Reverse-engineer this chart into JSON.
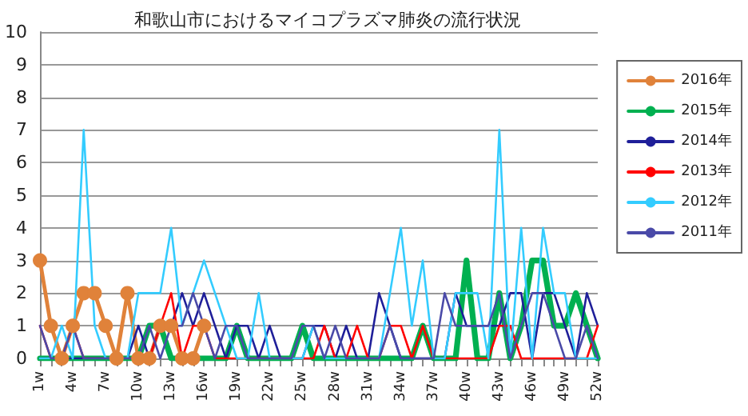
{
  "chart_data": {
    "type": "line",
    "title": "和歌山市におけるマイコプラズマ肺炎の流行状況",
    "categories": [
      "1w",
      null,
      null,
      "4w",
      null,
      null,
      "7w",
      null,
      null,
      "10w",
      null,
      null,
      "13w",
      null,
      null,
      "16w",
      null,
      null,
      "19w",
      null,
      null,
      "22w",
      null,
      null,
      "25w",
      null,
      null,
      "28w",
      null,
      null,
      "31w",
      null,
      null,
      "34w",
      null,
      null,
      "37w",
      null,
      null,
      "40w",
      null,
      null,
      "43w",
      null,
      null,
      "46w",
      null,
      null,
      "49w",
      null,
      null,
      "52w"
    ],
    "series": [
      {
        "name": "2016年",
        "color": "#e0823a",
        "marker": "circle",
        "values": [
          3,
          1,
          0,
          1,
          2,
          2,
          1,
          0,
          2,
          0,
          0,
          1,
          1,
          0,
          0,
          1,
          null,
          null,
          null,
          null,
          null,
          null,
          null,
          null,
          null,
          null,
          null,
          null,
          null,
          null,
          null,
          null,
          null,
          null,
          null,
          null,
          null,
          null,
          null,
          null,
          null,
          null,
          null,
          null,
          null,
          null,
          null,
          null,
          null,
          null,
          null,
          null
        ]
      },
      {
        "name": "2015年",
        "color": "#00b050",
        "marker": "none",
        "values": [
          0,
          0,
          0,
          0,
          0,
          0,
          0,
          0,
          0,
          0,
          1,
          1,
          0,
          0,
          0,
          0,
          0,
          0,
          1,
          0,
          0,
          0,
          0,
          0,
          1,
          0,
          0,
          0,
          0,
          0,
          0,
          0,
          0,
          0,
          0,
          1,
          0,
          0,
          0,
          3,
          0,
          0,
          2,
          0,
          1,
          3,
          3,
          1,
          1,
          2,
          1,
          0
        ]
      },
      {
        "name": "2014年",
        "color": "#1f1f99",
        "marker": "none",
        "values": [
          0,
          0,
          0,
          0,
          0,
          0,
          0,
          0,
          0,
          1,
          0,
          1,
          1,
          2,
          1,
          2,
          1,
          0,
          1,
          1,
          0,
          1,
          0,
          0,
          0,
          1,
          1,
          0,
          1,
          0,
          0,
          2,
          1,
          0,
          0,
          0,
          0,
          0,
          2,
          1,
          1,
          1,
          1,
          2,
          2,
          0,
          2,
          2,
          1,
          0,
          2,
          1
        ]
      },
      {
        "name": "2013年",
        "color": "#ff0000",
        "marker": "none",
        "values": [
          1,
          0,
          0,
          1,
          0,
          0,
          0,
          0,
          0,
          0,
          0,
          1,
          2,
          0,
          1,
          1,
          0,
          0,
          0,
          0,
          0,
          0,
          0,
          0,
          0,
          0,
          1,
          0,
          0,
          1,
          0,
          0,
          1,
          1,
          0,
          1,
          0,
          0,
          0,
          0,
          0,
          0,
          1,
          1,
          0,
          0,
          0,
          0,
          0,
          0,
          0,
          1
        ]
      },
      {
        "name": "2012年",
        "color": "#33ccff",
        "marker": "none",
        "values": [
          0,
          0,
          1,
          0,
          7,
          1,
          0,
          0,
          0,
          2,
          2,
          2,
          4,
          1,
          2,
          3,
          2,
          1,
          0,
          0,
          2,
          0,
          0,
          0,
          0,
          1,
          0,
          0,
          0,
          0,
          0,
          0,
          2,
          4,
          1,
          3,
          0,
          0,
          2,
          2,
          2,
          0,
          7,
          0,
          4,
          0,
          4,
          2,
          2,
          0,
          0,
          0
        ]
      },
      {
        "name": "2011年",
        "color": "#4a4aa8",
        "marker": "none",
        "values": [
          1,
          0,
          0,
          1,
          0,
          0,
          0,
          0,
          0,
          0,
          1,
          0,
          1,
          1,
          2,
          1,
          0,
          1,
          1,
          0,
          0,
          0,
          0,
          0,
          1,
          1,
          0,
          1,
          0,
          0,
          0,
          0,
          1,
          0,
          0,
          0,
          0,
          2,
          1,
          1,
          1,
          1,
          2,
          0,
          1,
          2,
          2,
          1,
          0,
          0,
          1,
          0
        ]
      }
    ],
    "ylim": [
      0,
      10
    ],
    "yticks": [
      0,
      1,
      2,
      3,
      4,
      5,
      6,
      7,
      8,
      9,
      10
    ],
    "grid": "y",
    "legend": "right"
  }
}
